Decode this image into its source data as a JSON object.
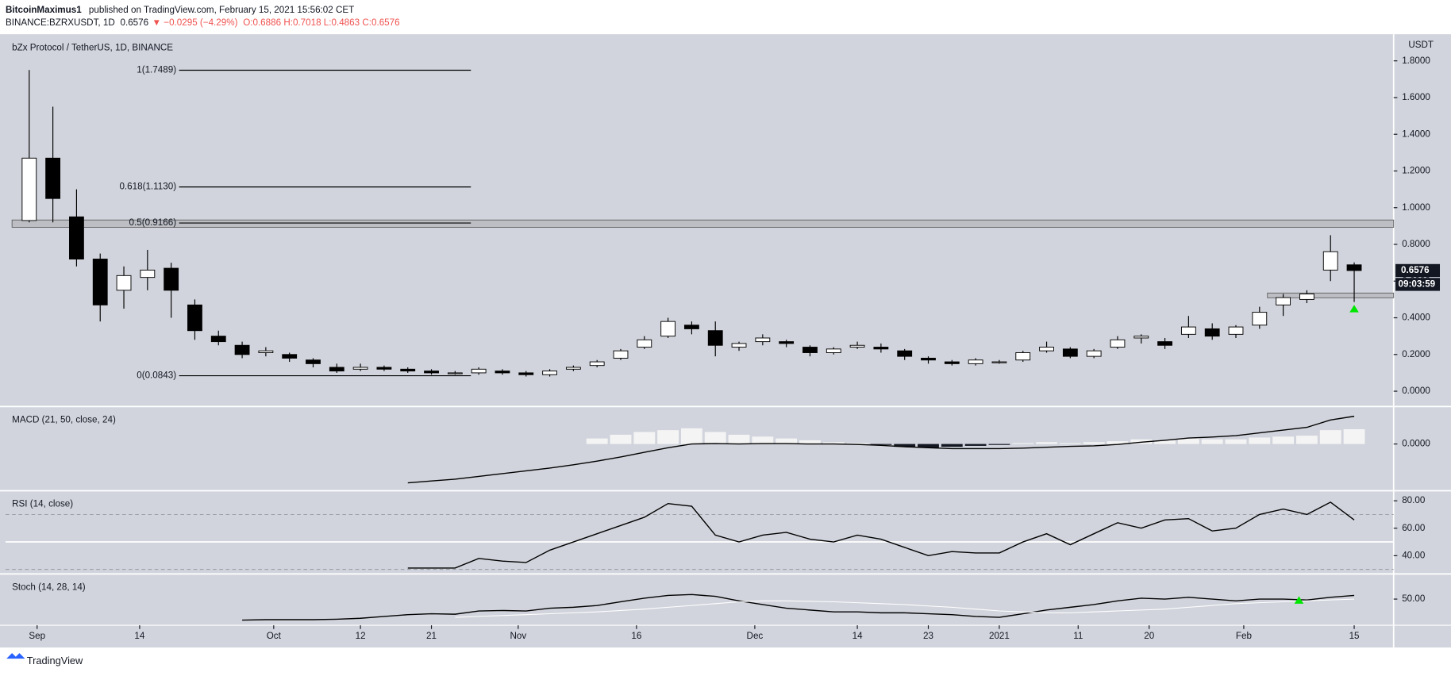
{
  "header": {
    "author": "BitcoinMaximus1",
    "published": "published on TradingView.com, February 15, 2021 15:56:02 CET",
    "symbol": "BINANCE:BZRXUSDT, 1D",
    "last": "0.6576",
    "change": "▼ −0.0295 (−4.29%)",
    "ohlc": "O:0.6886 H:0.7018 L:0.4863 C:0.6576"
  },
  "footer": {
    "brand": "TradingView"
  },
  "chart_data": [
    {
      "type": "candlestick",
      "title": "bZx Protocol / TetherUS, 1D, BINANCE",
      "y_axis_label": "USDT",
      "x": [
        -1,
        2,
        5,
        8,
        11,
        14,
        17,
        20,
        23,
        26,
        29,
        32,
        35,
        38,
        41,
        44,
        47,
        50,
        53,
        56,
        59,
        62,
        65,
        68,
        71,
        74,
        77,
        80,
        83,
        86,
        89,
        92,
        95,
        98,
        101,
        104,
        107,
        110,
        113,
        116,
        119,
        122,
        125,
        128,
        131,
        134,
        137,
        140,
        143,
        146,
        149,
        152,
        155,
        158,
        161,
        164,
        167
      ],
      "open": [
        0.93,
        1.27,
        0.95,
        0.72,
        0.55,
        0.62,
        0.67,
        0.47,
        0.3,
        0.25,
        0.21,
        0.2,
        0.17,
        0.13,
        0.12,
        0.13,
        0.12,
        0.11,
        0.1,
        0.1,
        0.11,
        0.1,
        0.09,
        0.12,
        0.14,
        0.18,
        0.24,
        0.3,
        0.36,
        0.33,
        0.24,
        0.27,
        0.27,
        0.24,
        0.21,
        0.24,
        0.24,
        0.22,
        0.18,
        0.16,
        0.15,
        0.16,
        0.17,
        0.22,
        0.23,
        0.19,
        0.24,
        0.29,
        0.27,
        0.31,
        0.34,
        0.31,
        0.36,
        0.47,
        0.5,
        0.66,
        0.6886
      ],
      "high": [
        1.75,
        1.55,
        1.1,
        0.75,
        0.68,
        0.77,
        0.7,
        0.5,
        0.33,
        0.27,
        0.24,
        0.21,
        0.18,
        0.15,
        0.15,
        0.14,
        0.13,
        0.12,
        0.11,
        0.13,
        0.12,
        0.11,
        0.12,
        0.14,
        0.17,
        0.23,
        0.3,
        0.4,
        0.38,
        0.38,
        0.27,
        0.31,
        0.28,
        0.25,
        0.24,
        0.27,
        0.26,
        0.23,
        0.19,
        0.17,
        0.18,
        0.17,
        0.22,
        0.27,
        0.24,
        0.23,
        0.3,
        0.31,
        0.29,
        0.41,
        0.37,
        0.36,
        0.46,
        0.53,
        0.55,
        0.85,
        0.7018
      ],
      "low": [
        0.92,
        0.92,
        0.68,
        0.38,
        0.45,
        0.55,
        0.4,
        0.28,
        0.25,
        0.18,
        0.19,
        0.16,
        0.13,
        0.1,
        0.11,
        0.11,
        0.1,
        0.09,
        0.09,
        0.09,
        0.09,
        0.08,
        0.08,
        0.11,
        0.13,
        0.17,
        0.23,
        0.29,
        0.31,
        0.19,
        0.22,
        0.25,
        0.24,
        0.19,
        0.2,
        0.23,
        0.21,
        0.17,
        0.15,
        0.14,
        0.14,
        0.15,
        0.16,
        0.21,
        0.18,
        0.18,
        0.23,
        0.26,
        0.23,
        0.29,
        0.28,
        0.29,
        0.34,
        0.41,
        0.48,
        0.6,
        0.4863
      ],
      "close": [
        1.27,
        1.05,
        0.72,
        0.47,
        0.63,
        0.66,
        0.55,
        0.33,
        0.27,
        0.2,
        0.22,
        0.18,
        0.15,
        0.11,
        0.13,
        0.12,
        0.11,
        0.1,
        0.1,
        0.12,
        0.1,
        0.09,
        0.11,
        0.13,
        0.16,
        0.22,
        0.28,
        0.38,
        0.34,
        0.25,
        0.26,
        0.29,
        0.26,
        0.21,
        0.23,
        0.25,
        0.23,
        0.19,
        0.17,
        0.15,
        0.17,
        0.16,
        0.21,
        0.24,
        0.19,
        0.22,
        0.28,
        0.3,
        0.25,
        0.35,
        0.3,
        0.35,
        0.43,
        0.51,
        0.53,
        0.76,
        0.6576
      ],
      "up_color": "#ffffff",
      "down_color": "#000000",
      "xlim": [
        -4,
        172
      ],
      "xticks": [
        {
          "value": 0,
          "label": "Sep"
        },
        {
          "value": 13,
          "label": "14"
        },
        {
          "value": 30,
          "label": "Oct"
        },
        {
          "value": 41,
          "label": "12"
        },
        {
          "value": 50,
          "label": "21"
        },
        {
          "value": 61,
          "label": "Nov"
        },
        {
          "value": 76,
          "label": "16"
        },
        {
          "value": 91,
          "label": "Dec"
        },
        {
          "value": 104,
          "label": "14"
        },
        {
          "value": 113,
          "label": "23"
        },
        {
          "value": 122,
          "label": "2021"
        },
        {
          "value": 132,
          "label": "11"
        },
        {
          "value": 141,
          "label": "20"
        },
        {
          "value": 153,
          "label": "Feb"
        },
        {
          "value": 167,
          "label": "15"
        }
      ],
      "ylim": [
        -0.076,
        1.94
      ],
      "yticks": [
        {
          "value": 0,
          "label": "0.0000"
        },
        {
          "value": 0.2,
          "label": "0.2000"
        },
        {
          "value": 0.4,
          "label": "0.4000"
        },
        {
          "value": 0.6,
          "label": "0.6000"
        },
        {
          "value": 0.8,
          "label": "0.8000"
        },
        {
          "value": 1.0,
          "label": "1.0000"
        },
        {
          "value": 1.2,
          "label": "1.2000"
        },
        {
          "value": 1.4,
          "label": "1.4000"
        },
        {
          "value": 1.6,
          "label": "1.6000"
        },
        {
          "value": 1.8,
          "label": "1.8000"
        }
      ],
      "last_price": {
        "value": 0.6576,
        "label": "0.6576"
      },
      "countdown": "09:03:59",
      "fib_levels": [
        {
          "value": 1.7489,
          "label": "1(1.7489)"
        },
        {
          "value": 1.113,
          "label": "0.618(1.1130)"
        },
        {
          "value": 0.9166,
          "label": "0.5(0.9166)"
        },
        {
          "value": 0.0843,
          "label": "0(0.0843)"
        }
      ],
      "fib_x": [
        18,
        55
      ],
      "resistance_zone": [
        0.893,
        0.933
      ],
      "support_zone": [
        0.509,
        0.535
      ],
      "support_zone_start": 156,
      "signal_marker": {
        "x": 167,
        "value": 0.45,
        "color": "#00e600"
      }
    },
    {
      "type": "macd",
      "title": "MACD (21, 50, close, 24)",
      "ylim": [
        -0.1,
        0.08
      ],
      "yticks": [
        {
          "value": 0,
          "label": "0.0000"
        }
      ],
      "series": [
        {
          "color": "#000000",
          "values": [
            null,
            null,
            null,
            null,
            null,
            null,
            null,
            null,
            null,
            null,
            null,
            null,
            null,
            null,
            null,
            null,
            -0.084,
            -0.08,
            -0.076,
            -0.07,
            -0.064,
            -0.058,
            -0.052,
            -0.045,
            -0.037,
            -0.028,
            -0.018,
            -0.008,
            0.0,
            0.001,
            0.0,
            0.001,
            0.001,
            0.0,
            0.0,
            -0.001,
            -0.003,
            -0.006,
            -0.008,
            -0.01,
            -0.01,
            -0.01,
            -0.009,
            -0.007,
            -0.005,
            -0.004,
            -0.001,
            0.004,
            0.008,
            0.013,
            0.015,
            0.018,
            0.024,
            0.03,
            0.036,
            0.052,
            0.06
          ]
        }
      ],
      "histogram": {
        "color": "#f4f4f4",
        "negative_color": "#131722",
        "values": [
          null,
          null,
          null,
          null,
          null,
          null,
          null,
          null,
          null,
          null,
          null,
          null,
          null,
          null,
          null,
          null,
          null,
          null,
          null,
          null,
          null,
          null,
          null,
          null,
          0.012,
          0.02,
          0.026,
          0.03,
          0.034,
          0.026,
          0.02,
          0.016,
          0.012,
          0.008,
          0.004,
          0.002,
          -0.002,
          -0.006,
          -0.008,
          -0.006,
          -0.004,
          -0.002,
          0.002,
          0.004,
          0.002,
          0.004,
          0.006,
          0.01,
          0.008,
          0.012,
          0.01,
          0.01,
          0.014,
          0.016,
          0.018,
          0.03,
          0.032
        ]
      }
    },
    {
      "type": "rsi",
      "title": "RSI (14, close)",
      "ylim": [
        27,
        87
      ],
      "yticks": [
        {
          "value": 40,
          "label": "40.00"
        },
        {
          "value": 60,
          "label": "60.00"
        },
        {
          "value": 80,
          "label": "80.00"
        }
      ],
      "bands": [
        30,
        50,
        70
      ],
      "color": "#000000",
      "values": [
        null,
        null,
        null,
        null,
        null,
        null,
        null,
        null,
        null,
        null,
        null,
        null,
        null,
        null,
        null,
        null,
        31,
        31,
        31,
        38,
        36,
        35,
        44,
        50,
        56,
        62,
        68,
        78,
        76,
        55,
        50,
        55,
        57,
        52,
        50,
        55,
        52,
        46,
        40,
        43,
        42,
        42,
        50,
        56,
        48,
        56,
        64,
        60,
        66,
        67,
        58,
        60,
        70,
        74,
        70,
        79,
        66
      ]
    },
    {
      "type": "stoch",
      "title": "Stoch (14, 28, 14)",
      "ylim": [
        -56,
        104
      ],
      "yticks": [
        {
          "value": 50,
          "label": "50.00"
        }
      ],
      "series": [
        {
          "color": "#000000",
          "values": [
            null,
            null,
            null,
            null,
            null,
            null,
            null,
            null,
            null,
            4,
            5,
            5,
            5,
            6,
            8,
            12,
            16,
            18,
            17,
            24,
            25,
            24,
            30,
            32,
            36,
            44,
            52,
            58,
            60,
            56,
            46,
            38,
            30,
            26,
            22,
            22,
            20,
            20,
            18,
            16,
            12,
            10,
            18,
            26,
            32,
            38,
            46,
            52,
            50,
            54,
            50,
            46,
            50,
            50,
            48,
            54,
            58
          ]
        },
        {
          "color": "#ffffff",
          "values": [
            null,
            null,
            null,
            null,
            null,
            null,
            null,
            null,
            null,
            null,
            null,
            null,
            null,
            null,
            null,
            null,
            null,
            null,
            10,
            12,
            14,
            16,
            18,
            20,
            22,
            25,
            28,
            32,
            36,
            40,
            44,
            46,
            46,
            45,
            44,
            42,
            40,
            38,
            35,
            32,
            28,
            24,
            22,
            20,
            20,
            22,
            24,
            26,
            28,
            32,
            36,
            40,
            42,
            44,
            46,
            48,
            50
          ]
        }
      ],
      "signal_marker": {
        "x": 160,
        "value": 48,
        "color": "#00e600"
      }
    }
  ]
}
